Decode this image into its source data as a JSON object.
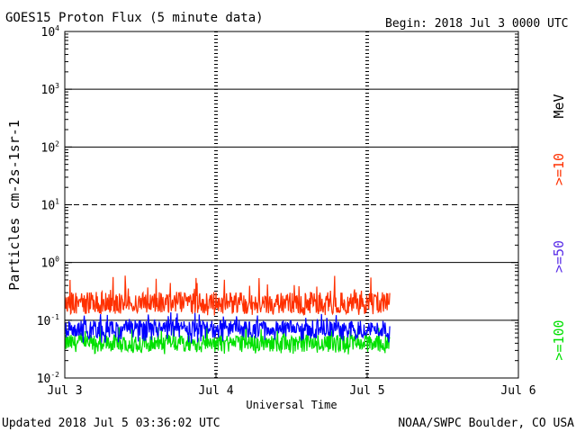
{
  "header": {
    "title": "GOES15 Proton Flux (5 minute data)",
    "begin": "Begin: 2018 Jul 3 0000 UTC"
  },
  "footer": {
    "updated": "Updated 2018 Jul  5 03:36:02 UTC",
    "credit": "NOAA/SWPC Boulder, CO USA"
  },
  "chart_data": {
    "type": "line",
    "title": "GOES15 Proton Flux (5 minute data)",
    "xlabel": "Universal Time",
    "ylabel": "Particles cm-2s-1sr-1",
    "yscale": "log",
    "ylim": [
      0.01,
      10000
    ],
    "xlim": [
      "2018-07-03",
      "2018-07-06"
    ],
    "x_ticks": [
      "Jul 3",
      "Jul 4",
      "Jul 5",
      "Jul 6"
    ],
    "y_ticks": [
      {
        "base": "10",
        "exp": "-2"
      },
      {
        "base": "10",
        "exp": "-1"
      },
      {
        "base": "10",
        "exp": "0"
      },
      {
        "base": "10",
        "exp": "1"
      },
      {
        "base": "10",
        "exp": "2"
      },
      {
        "base": "10",
        "exp": "3"
      },
      {
        "base": "10",
        "exp": "4"
      }
    ],
    "units_label": "MeV",
    "grid": true,
    "data_end": "2018-07-05 03:35",
    "series": [
      {
        "name": ">=10",
        "color": "#ff3000",
        "typical": 0.2,
        "range": [
          0.12,
          0.6
        ]
      },
      {
        "name": ">=50",
        "color": "#0000ff",
        "typical": 0.07,
        "range": [
          0.04,
          0.14
        ]
      },
      {
        "name": ">=100",
        "color": "#00e000",
        "typical": 0.04,
        "range": [
          0.025,
          0.09
        ]
      }
    ]
  }
}
